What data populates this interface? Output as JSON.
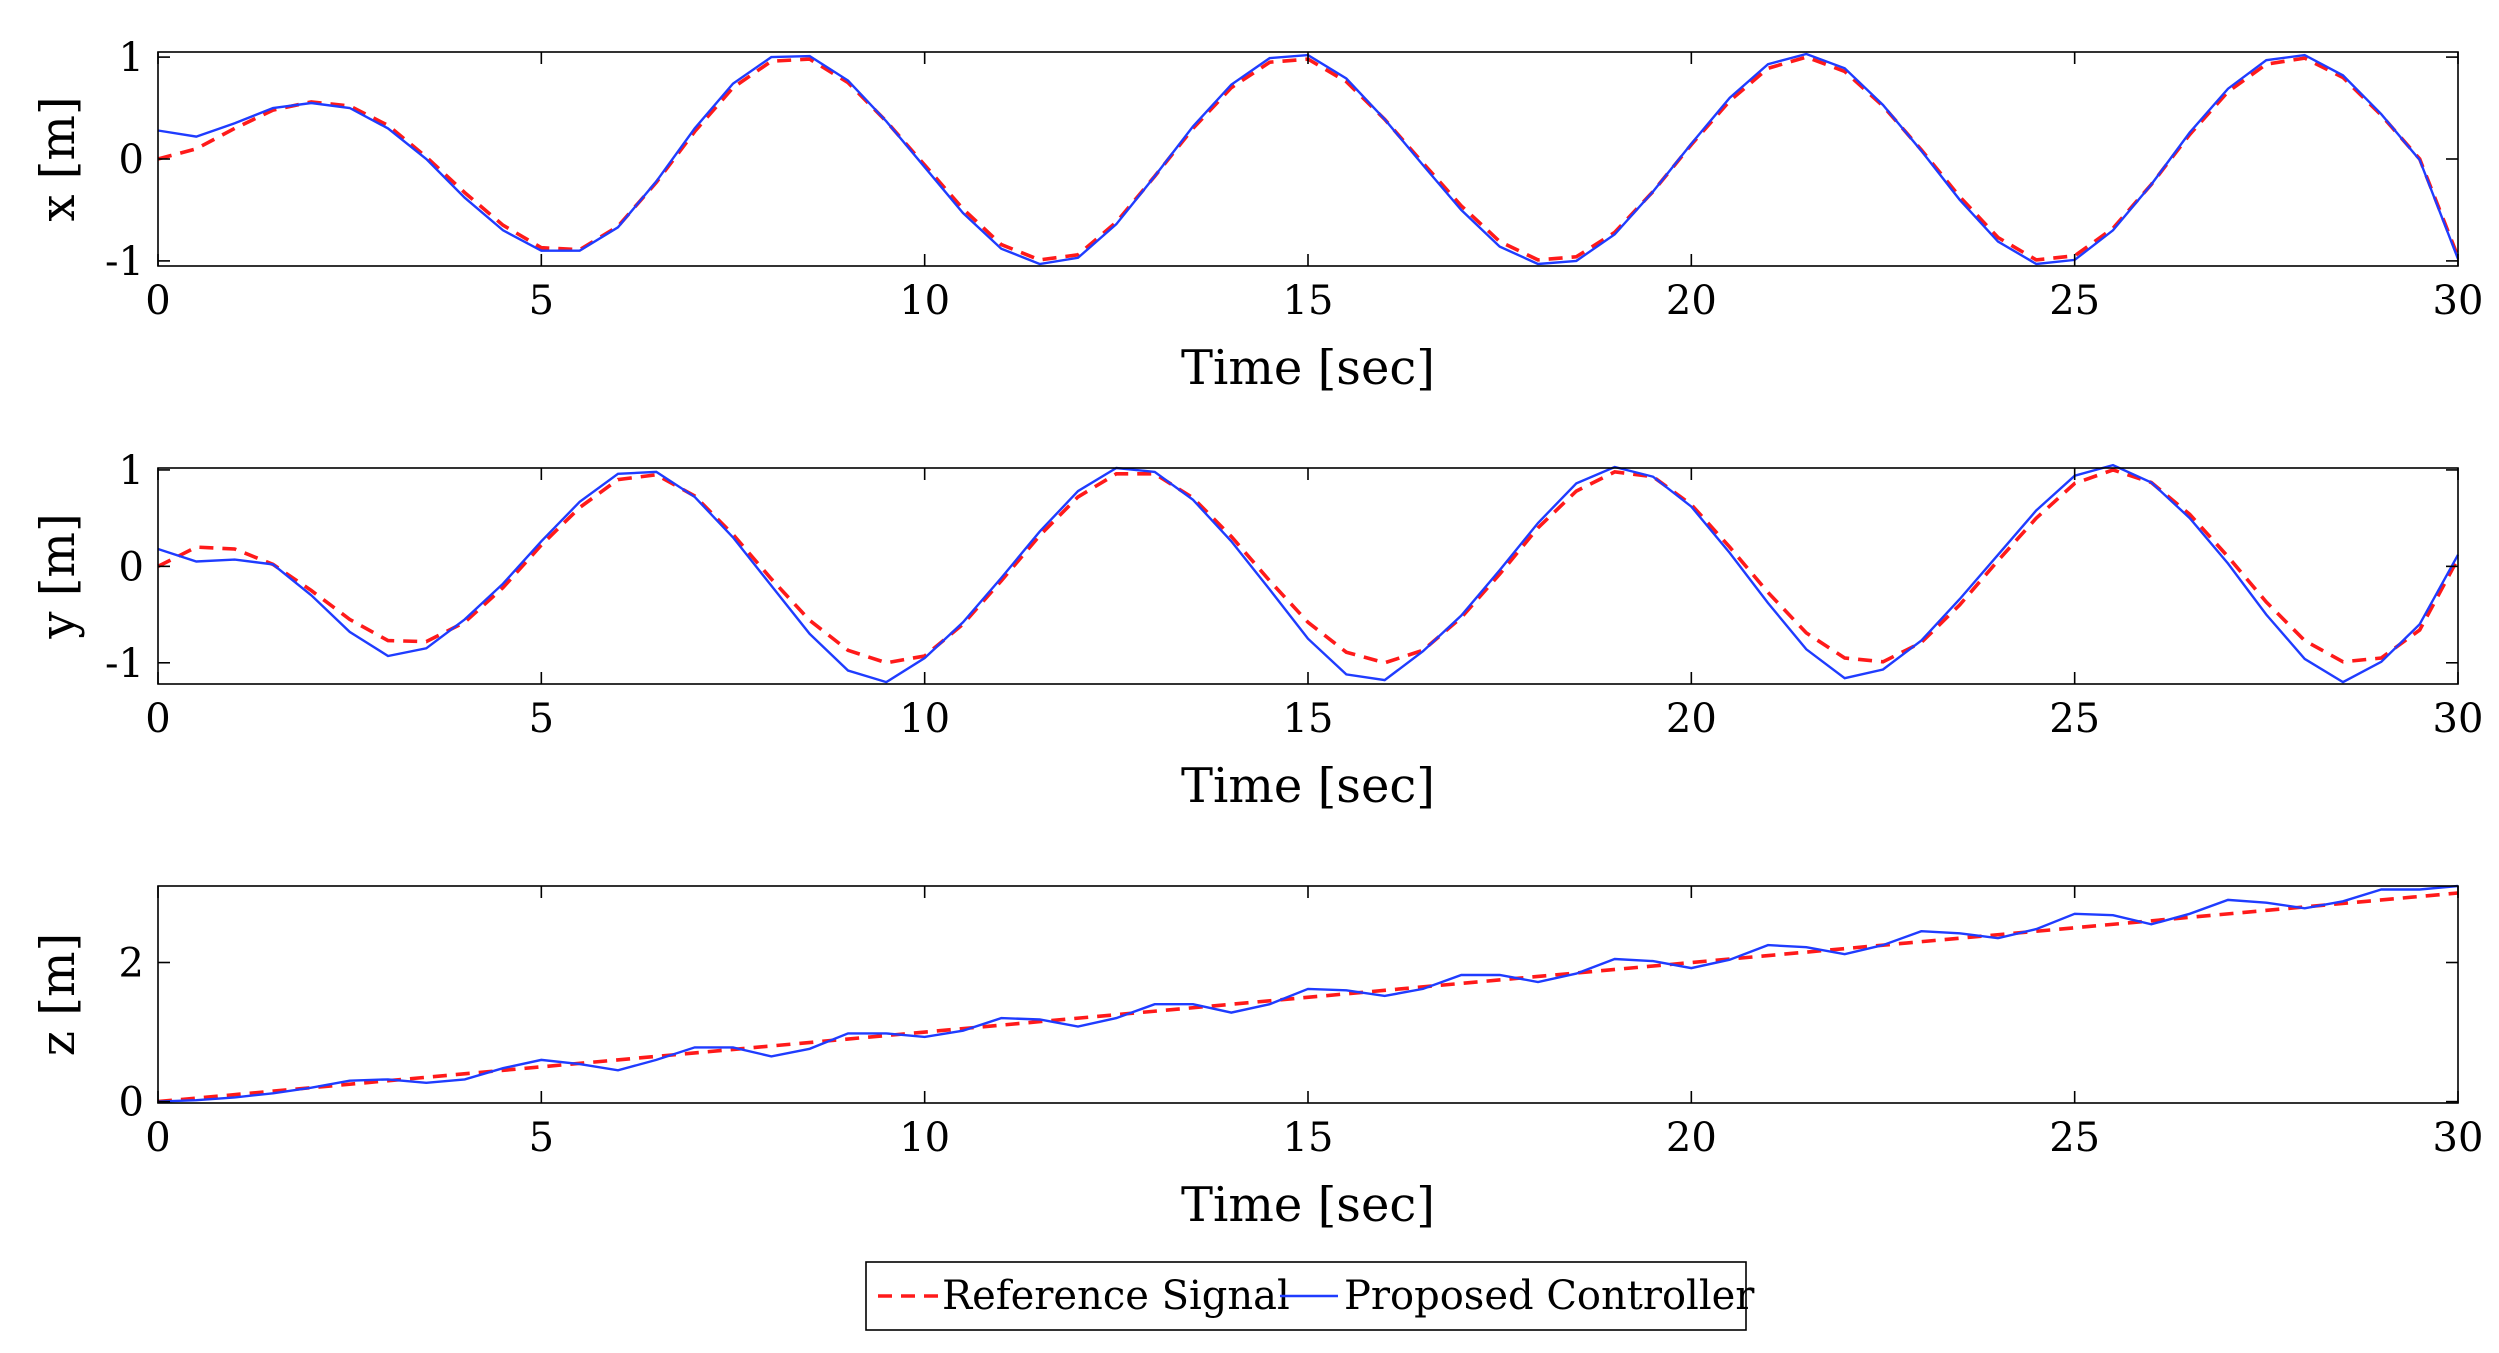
{
  "chart_data": [
    {
      "type": "line",
      "ylabel": "x [m]",
      "xlabel": "Time [sec]",
      "xlim": [
        0,
        30
      ],
      "ylim": [
        -1.05,
        1.05
      ],
      "xticks": [
        "0",
        "5",
        "10",
        "15",
        "20",
        "25",
        "30"
      ],
      "yticks": [
        "-1",
        "0",
        "1"
      ],
      "ytick_values": [
        -1,
        0,
        1
      ],
      "series": [
        {
          "name": "Reference Signal",
          "x": [
            0,
            0.5,
            1,
            1.5,
            2,
            2.5,
            3,
            3.5,
            4,
            4.5,
            5,
            5.5,
            6,
            6.5,
            7,
            7.5,
            8,
            8.5,
            9,
            9.5,
            10,
            10.5,
            11,
            11.5,
            12,
            12.5,
            13,
            13.5,
            14,
            14.5,
            15,
            15.5,
            16,
            16.5,
            17,
            17.5,
            18,
            18.5,
            19,
            19.5,
            20,
            20.5,
            21,
            21.5,
            22,
            22.5,
            23,
            23.5,
            24,
            24.5,
            25,
            25.5,
            26,
            26.5,
            27,
            27.5,
            28,
            28.5,
            29,
            29.5,
            30
          ],
          "values": [
            0.0,
            0.1,
            0.3,
            0.48,
            0.56,
            0.52,
            0.33,
            0.02,
            -0.33,
            -0.65,
            -0.87,
            -0.89,
            -0.66,
            -0.23,
            0.27,
            0.7,
            0.96,
            0.98,
            0.75,
            0.37,
            -0.06,
            -0.49,
            -0.84,
            -0.99,
            -0.94,
            -0.62,
            -0.17,
            0.3,
            0.7,
            0.95,
            0.98,
            0.76,
            0.39,
            -0.04,
            -0.46,
            -0.81,
            -0.99,
            -0.96,
            -0.72,
            -0.32,
            0.14,
            0.57,
            0.89,
            1.0,
            0.86,
            0.52,
            0.09,
            -0.37,
            -0.77,
            -0.99,
            -0.95,
            -0.68,
            -0.25,
            0.24,
            0.66,
            0.93,
            0.99,
            0.8,
            0.43,
            0.0,
            -0.96
          ]
        },
        {
          "name": "Proposed Controller",
          "x": [
            0,
            0.5,
            1,
            1.5,
            2,
            2.5,
            3,
            3.5,
            4,
            4.5,
            5,
            5.5,
            6,
            6.5,
            7,
            7.5,
            8,
            8.5,
            9,
            9.5,
            10,
            10.5,
            11,
            11.5,
            12,
            12.5,
            13,
            13.5,
            14,
            14.5,
            15,
            15.5,
            16,
            16.5,
            17,
            17.5,
            18,
            18.5,
            19,
            19.5,
            20,
            20.5,
            21,
            21.5,
            22,
            22.5,
            23,
            23.5,
            24,
            24.5,
            25,
            25.5,
            26,
            26.5,
            27,
            27.5,
            28,
            28.5,
            29,
            29.5,
            30
          ],
          "values": [
            0.28,
            0.22,
            0.35,
            0.5,
            0.55,
            0.5,
            0.3,
            0.0,
            -0.38,
            -0.7,
            -0.9,
            -0.9,
            -0.67,
            -0.22,
            0.3,
            0.74,
            1.0,
            1.01,
            0.77,
            0.37,
            -0.08,
            -0.53,
            -0.88,
            -1.03,
            -0.97,
            -0.64,
            -0.17,
            0.32,
            0.73,
            0.99,
            1.02,
            0.79,
            0.39,
            -0.06,
            -0.5,
            -0.86,
            -1.03,
            -1.0,
            -0.74,
            -0.32,
            0.15,
            0.6,
            0.93,
            1.03,
            0.89,
            0.53,
            0.08,
            -0.4,
            -0.81,
            -1.03,
            -0.99,
            -0.7,
            -0.25,
            0.26,
            0.69,
            0.97,
            1.02,
            0.82,
            0.44,
            -0.01,
            -0.98
          ]
        }
      ]
    },
    {
      "type": "line",
      "ylabel": "y [m]",
      "xlabel": "Time [sec]",
      "xlim": [
        0,
        30
      ],
      "ylim": [
        -1.22,
        1.02
      ],
      "xticks": [
        "0",
        "5",
        "10",
        "15",
        "20",
        "25",
        "30"
      ],
      "yticks": [
        "-1",
        "0",
        "1"
      ],
      "ytick_values": [
        -1,
        0,
        1
      ],
      "series": [
        {
          "name": "Reference Signal",
          "x": [
            0,
            0.5,
            1,
            1.5,
            2,
            2.5,
            3,
            3.5,
            4,
            4.5,
            5,
            5.5,
            6,
            6.5,
            7,
            7.5,
            8,
            8.5,
            9,
            9.5,
            10,
            10.5,
            11,
            11.5,
            12,
            12.5,
            13,
            13.5,
            14,
            14.5,
            15,
            15.5,
            16,
            16.5,
            17,
            17.5,
            18,
            18.5,
            19,
            19.5,
            20,
            20.5,
            21,
            21.5,
            22,
            22.5,
            23,
            23.5,
            24,
            24.5,
            25,
            25.5,
            26,
            26.5,
            27,
            27.5,
            28,
            28.5,
            29,
            29.5,
            30
          ],
          "values": [
            0.0,
            0.2,
            0.18,
            0.02,
            -0.25,
            -0.55,
            -0.77,
            -0.78,
            -0.58,
            -0.22,
            0.22,
            0.61,
            0.9,
            0.95,
            0.73,
            0.33,
            -0.13,
            -0.56,
            -0.87,
            -1.0,
            -0.93,
            -0.6,
            -0.15,
            0.32,
            0.72,
            0.96,
            0.96,
            0.71,
            0.31,
            -0.15,
            -0.58,
            -0.89,
            -1.0,
            -0.87,
            -0.53,
            -0.08,
            0.4,
            0.78,
            0.98,
            0.93,
            0.64,
            0.2,
            -0.27,
            -0.69,
            -0.95,
            -0.99,
            -0.79,
            -0.4,
            0.06,
            0.5,
            0.86,
            1.0,
            0.87,
            0.54,
            0.1,
            -0.37,
            -0.77,
            -0.99,
            -0.95,
            -0.66,
            0.08
          ]
        },
        {
          "name": "Proposed Controller",
          "x": [
            0,
            0.5,
            1,
            1.5,
            2,
            2.5,
            3,
            3.5,
            4,
            4.5,
            5,
            5.5,
            6,
            6.5,
            7,
            7.5,
            8,
            8.5,
            9,
            9.5,
            10,
            10.5,
            11,
            11.5,
            12,
            12.5,
            13,
            13.5,
            14,
            14.5,
            15,
            15.5,
            16,
            16.5,
            17,
            17.5,
            18,
            18.5,
            19,
            19.5,
            20,
            20.5,
            21,
            21.5,
            22,
            22.5,
            23,
            23.5,
            24,
            24.5,
            25,
            25.5,
            26,
            26.5,
            27,
            27.5,
            28,
            28.5,
            29,
            29.5,
            30
          ],
          "values": [
            0.18,
            0.05,
            0.07,
            0.02,
            -0.3,
            -0.68,
            -0.93,
            -0.85,
            -0.55,
            -0.18,
            0.26,
            0.67,
            0.96,
            0.98,
            0.72,
            0.3,
            -0.2,
            -0.7,
            -1.08,
            -1.2,
            -0.95,
            -0.58,
            -0.12,
            0.36,
            0.78,
            1.02,
            0.98,
            0.69,
            0.26,
            -0.24,
            -0.75,
            -1.12,
            -1.18,
            -0.88,
            -0.51,
            -0.04,
            0.45,
            0.86,
            1.03,
            0.93,
            0.62,
            0.14,
            -0.38,
            -0.86,
            -1.16,
            -1.07,
            -0.77,
            -0.34,
            0.12,
            0.58,
            0.94,
            1.05,
            0.87,
            0.5,
            0.03,
            -0.5,
            -0.96,
            -1.2,
            -0.99,
            -0.6,
            0.12
          ]
        }
      ]
    },
    {
      "type": "line",
      "ylabel": "z [m]",
      "xlabel": "Time [sec]",
      "xlim": [
        0,
        30
      ],
      "ylim": [
        -0.02,
        3.1
      ],
      "xticks": [
        "0",
        "5",
        "10",
        "15",
        "20",
        "25",
        "30"
      ],
      "yticks": [
        "0",
        "2"
      ],
      "ytick_values": [
        0,
        2
      ],
      "series": [
        {
          "name": "Reference Signal",
          "x": [
            0,
            30
          ],
          "values": [
            0.0,
            3.0
          ]
        },
        {
          "name": "Proposed Controller",
          "x": [
            0,
            0.5,
            1,
            1.5,
            2,
            2.5,
            3,
            3.5,
            4,
            4.5,
            5,
            5.5,
            6,
            6.5,
            7,
            7.5,
            8,
            8.5,
            9,
            9.5,
            10,
            10.5,
            11,
            11.5,
            12,
            12.5,
            13,
            13.5,
            14,
            14.5,
            15,
            15.5,
            16,
            16.5,
            17,
            17.5,
            18,
            18.5,
            19,
            19.5,
            20,
            20.5,
            21,
            21.5,
            22,
            22.5,
            23,
            23.5,
            24,
            24.5,
            25,
            25.5,
            26,
            26.5,
            27,
            27.5,
            28,
            28.5,
            29,
            29.5,
            30
          ],
          "values": [
            0.0,
            0.02,
            0.06,
            0.12,
            0.2,
            0.3,
            0.32,
            0.27,
            0.32,
            0.48,
            0.6,
            0.54,
            0.45,
            0.6,
            0.78,
            0.78,
            0.65,
            0.76,
            0.98,
            0.98,
            0.93,
            1.02,
            1.2,
            1.18,
            1.08,
            1.2,
            1.4,
            1.4,
            1.28,
            1.4,
            1.62,
            1.6,
            1.52,
            1.62,
            1.82,
            1.82,
            1.72,
            1.84,
            2.05,
            2.02,
            1.92,
            2.04,
            2.25,
            2.22,
            2.12,
            2.25,
            2.45,
            2.42,
            2.35,
            2.48,
            2.7,
            2.68,
            2.55,
            2.7,
            2.9,
            2.86,
            2.78,
            2.88,
            3.05,
            3.05,
            3.1
          ]
        }
      ]
    }
  ],
  "legend": {
    "items": [
      "Reference Signal",
      "Proposed Controller"
    ],
    "colors": [
      "#ff1a1a",
      "#1f3cff"
    ],
    "placement": "bottom-center"
  }
}
